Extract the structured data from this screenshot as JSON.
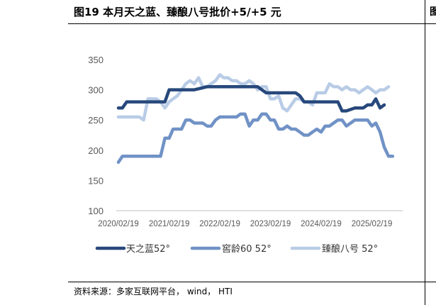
{
  "title": "图19 本月天之蓝、臻酿八号批价+5/+5 元",
  "source": "资料来源：多家互联网平台， wind， HTI",
  "chart_data": {
    "type": "line",
    "ylim": [
      100,
      350
    ],
    "yticks": [
      "100",
      "150",
      "200",
      "250",
      "300",
      "350"
    ],
    "xticks": [
      "2020/02/19",
      "2021/02/19",
      "2022/02/19",
      "2023/02/19",
      "2024/02/19",
      "2025/02/19"
    ],
    "xlim": [
      "2020-02-19",
      "2025-08-19"
    ],
    "grid": false,
    "legend_position": "bottom",
    "series": [
      {
        "name": "天之蓝52°",
        "color": "#27487b",
        "points": [
          [
            "2020-02-19",
            270
          ],
          [
            "2020-03-19",
            270
          ],
          [
            "2020-04-19",
            280
          ],
          [
            "2020-07-19",
            280
          ],
          [
            "2020-10-19",
            280
          ],
          [
            "2021-01-19",
            280
          ],
          [
            "2021-02-19",
            300
          ],
          [
            "2021-05-19",
            300
          ],
          [
            "2021-08-19",
            300
          ],
          [
            "2021-11-19",
            305
          ],
          [
            "2022-02-19",
            305
          ],
          [
            "2022-05-19",
            305
          ],
          [
            "2022-08-19",
            305
          ],
          [
            "2022-11-19",
            305
          ],
          [
            "2022-12-19",
            300
          ],
          [
            "2023-01-19",
            295
          ],
          [
            "2023-05-19",
            295
          ],
          [
            "2023-08-19",
            295
          ],
          [
            "2023-09-19",
            290
          ],
          [
            "2023-10-19",
            280
          ],
          [
            "2024-01-19",
            280
          ],
          [
            "2024-06-19",
            280
          ],
          [
            "2024-07-19",
            265
          ],
          [
            "2024-08-19",
            265
          ],
          [
            "2024-10-19",
            270
          ],
          [
            "2024-12-19",
            270
          ],
          [
            "2025-01-19",
            275
          ],
          [
            "2025-02-19",
            275
          ],
          [
            "2025-03-19",
            285
          ],
          [
            "2025-04-19",
            270
          ],
          [
            "2025-05-19",
            275
          ]
        ]
      },
      {
        "name": "窖龄60 52°",
        "color": "#7092c6",
        "points": [
          [
            "2020-02-19",
            180
          ],
          [
            "2020-03-19",
            190
          ],
          [
            "2020-06-19",
            190
          ],
          [
            "2020-09-19",
            190
          ],
          [
            "2020-12-19",
            190
          ],
          [
            "2021-01-19",
            220
          ],
          [
            "2021-02-19",
            220
          ],
          [
            "2021-03-19",
            235
          ],
          [
            "2021-05-19",
            235
          ],
          [
            "2021-06-19",
            250
          ],
          [
            "2021-07-19",
            250
          ],
          [
            "2021-08-19",
            245
          ],
          [
            "2021-10-19",
            245
          ],
          [
            "2021-11-19",
            240
          ],
          [
            "2021-12-19",
            240
          ],
          [
            "2022-01-19",
            250
          ],
          [
            "2022-02-19",
            255
          ],
          [
            "2022-04-19",
            255
          ],
          [
            "2022-06-19",
            255
          ],
          [
            "2022-07-19",
            260
          ],
          [
            "2022-08-19",
            260
          ],
          [
            "2022-09-19",
            240
          ],
          [
            "2022-10-19",
            250
          ],
          [
            "2022-11-19",
            250
          ],
          [
            "2022-12-19",
            260
          ],
          [
            "2023-01-19",
            260
          ],
          [
            "2023-02-19",
            250
          ],
          [
            "2023-03-19",
            250
          ],
          [
            "2023-04-19",
            235
          ],
          [
            "2023-05-19",
            235
          ],
          [
            "2023-06-19",
            240
          ],
          [
            "2023-07-19",
            235
          ],
          [
            "2023-08-19",
            235
          ],
          [
            "2023-09-19",
            230
          ],
          [
            "2023-10-19",
            225
          ],
          [
            "2023-11-19",
            225
          ],
          [
            "2023-12-19",
            230
          ],
          [
            "2024-01-19",
            235
          ],
          [
            "2024-02-19",
            230
          ],
          [
            "2024-03-19",
            240
          ],
          [
            "2024-04-19",
            240
          ],
          [
            "2024-05-19",
            245
          ],
          [
            "2024-06-19",
            250
          ],
          [
            "2024-07-19",
            250
          ],
          [
            "2024-08-19",
            240
          ],
          [
            "2024-09-19",
            245
          ],
          [
            "2024-10-19",
            250
          ],
          [
            "2024-11-19",
            250
          ],
          [
            "2024-12-19",
            250
          ],
          [
            "2025-01-19",
            250
          ],
          [
            "2025-02-19",
            240
          ],
          [
            "2025-03-19",
            245
          ],
          [
            "2025-04-19",
            230
          ],
          [
            "2025-05-19",
            205
          ],
          [
            "2025-06-19",
            190
          ],
          [
            "2025-07-19",
            190
          ]
        ]
      },
      {
        "name": "臻酿八号 52°",
        "color": "#b9cce6",
        "points": [
          [
            "2020-02-19",
            255
          ],
          [
            "2020-05-19",
            255
          ],
          [
            "2020-07-19",
            255
          ],
          [
            "2020-08-19",
            250
          ],
          [
            "2020-09-19",
            285
          ],
          [
            "2020-11-19",
            285
          ],
          [
            "2020-12-19",
            280
          ],
          [
            "2021-01-19",
            270
          ],
          [
            "2021-02-19",
            280
          ],
          [
            "2021-03-19",
            285
          ],
          [
            "2021-04-19",
            290
          ],
          [
            "2021-05-19",
            300
          ],
          [
            "2021-06-19",
            310
          ],
          [
            "2021-07-19",
            315
          ],
          [
            "2021-08-19",
            310
          ],
          [
            "2021-09-19",
            320
          ],
          [
            "2021-10-19",
            305
          ],
          [
            "2021-11-19",
            305
          ],
          [
            "2021-12-19",
            310
          ],
          [
            "2022-01-19",
            315
          ],
          [
            "2022-02-19",
            325
          ],
          [
            "2022-03-19",
            320
          ],
          [
            "2022-04-19",
            320
          ],
          [
            "2022-05-19",
            315
          ],
          [
            "2022-06-19",
            315
          ],
          [
            "2022-07-19",
            310
          ],
          [
            "2022-08-19",
            310
          ],
          [
            "2022-09-19",
            315
          ],
          [
            "2022-10-19",
            310
          ],
          [
            "2022-11-19",
            300
          ],
          [
            "2022-12-19",
            305
          ],
          [
            "2023-01-19",
            305
          ],
          [
            "2023-02-19",
            285
          ],
          [
            "2023-03-19",
            285
          ],
          [
            "2023-04-19",
            290
          ],
          [
            "2023-05-19",
            270
          ],
          [
            "2023-06-19",
            265
          ],
          [
            "2023-07-19",
            275
          ],
          [
            "2023-08-19",
            285
          ],
          [
            "2023-09-19",
            285
          ],
          [
            "2023-10-19",
            280
          ],
          [
            "2023-11-19",
            280
          ],
          [
            "2023-12-19",
            275
          ],
          [
            "2024-01-19",
            295
          ],
          [
            "2024-02-19",
            295
          ],
          [
            "2024-03-19",
            295
          ],
          [
            "2024-04-19",
            310
          ],
          [
            "2024-05-19",
            305
          ],
          [
            "2024-06-19",
            305
          ],
          [
            "2024-07-19",
            300
          ],
          [
            "2024-08-19",
            305
          ],
          [
            "2024-09-19",
            300
          ],
          [
            "2024-10-19",
            300
          ],
          [
            "2024-11-19",
            295
          ],
          [
            "2024-12-19",
            300
          ],
          [
            "2025-01-19",
            305
          ],
          [
            "2025-02-19",
            300
          ],
          [
            "2025-03-19",
            295
          ],
          [
            "2025-04-19",
            300
          ],
          [
            "2025-05-19",
            300
          ],
          [
            "2025-06-19",
            305
          ]
        ]
      }
    ]
  }
}
